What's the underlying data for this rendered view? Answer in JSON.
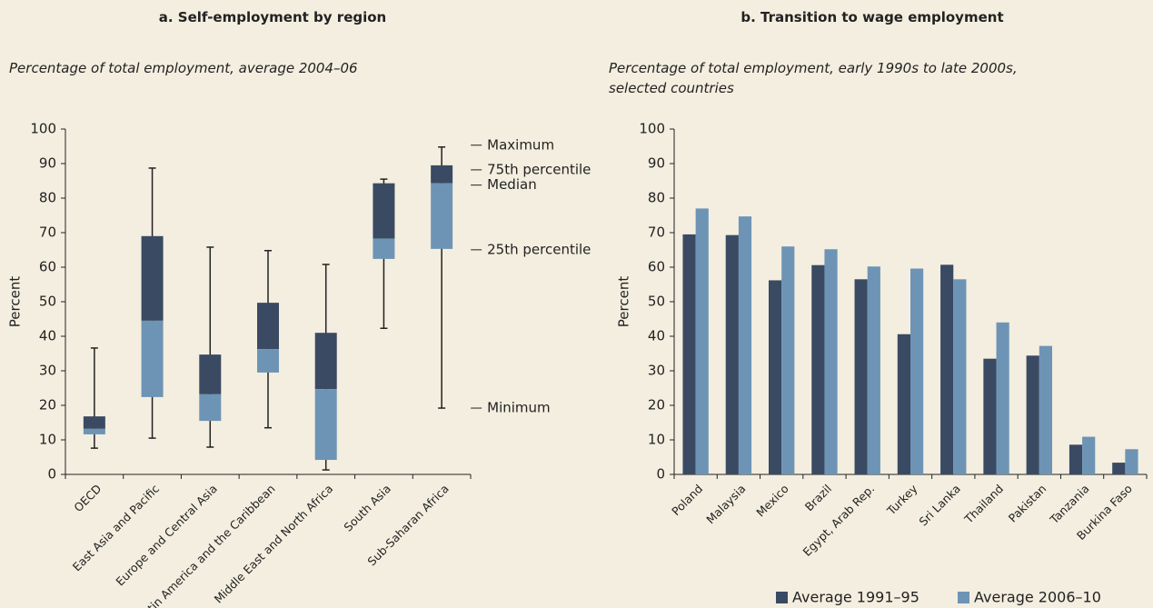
{
  "chart_data": [
    {
      "type": "box",
      "title": "a.  Self-employment by region",
      "subtitle": "Percentage of total employment, average 2004–06",
      "y_label": "Percent",
      "categories": [
        "OECD",
        "East Asia and Pacific",
        "Europe and Central Asia",
        "Latin America and the Caribbean",
        "Middle East and North Africa",
        "South Asia",
        "Sub-Saharan Africa"
      ],
      "min": [
        7.6,
        10.5,
        7.9,
        13.5,
        1.3,
        42.3,
        19.2
      ],
      "q1": [
        11.6,
        22.4,
        15.5,
        29.5,
        4.2,
        62.4,
        65.3
      ],
      "median": [
        13.2,
        44.5,
        23.2,
        36.3,
        24.7,
        68.3,
        84.3
      ],
      "q3": [
        16.8,
        69,
        34.7,
        49.7,
        41,
        84.3,
        89.5
      ],
      "max": [
        36.6,
        88.7,
        65.8,
        64.8,
        60.8,
        85.5,
        94.8
      ],
      "upper_color": "#3a4a63",
      "lower_color": "#6d94b5",
      "annotations": [
        "Maximum",
        "75th percentile",
        "Median",
        "25th percentile",
        "Minimum"
      ],
      "ylim": [
        0,
        100
      ],
      "yticks": [
        0,
        10,
        20,
        30,
        40,
        50,
        60,
        70,
        80,
        90,
        100
      ]
    },
    {
      "type": "bar",
      "title": "b.  Transition to wage employment",
      "subtitle": "Percentage of total employment, early 1990s to late 2000s, selected countries",
      "y_label": "Percent",
      "categories": [
        "Poland",
        "Malaysia",
        "Mexico",
        "Brazil",
        "Egypt, Arab Rep.",
        "Turkey",
        "Sri Lanka",
        "Thailand",
        "Pakistan",
        "Tanzania",
        "Burkina Faso"
      ],
      "series": [
        {
          "name": "Average 1991–95",
          "color": "#3a4a63",
          "values": [
            69.5,
            69.3,
            56.2,
            60.6,
            56.5,
            40.6,
            60.7,
            33.5,
            34.4,
            8.6,
            3.4
          ]
        },
        {
          "name": "Average 2006–10",
          "color": "#6d94b5",
          "values": [
            77,
            74.7,
            66,
            65.2,
            60.2,
            59.6,
            56.5,
            44,
            37.2,
            10.9,
            7.3
          ]
        }
      ],
      "ylim": [
        0,
        100
      ],
      "yticks": [
        0,
        10,
        20,
        30,
        40,
        50,
        60,
        70,
        80,
        90,
        100
      ]
    }
  ]
}
